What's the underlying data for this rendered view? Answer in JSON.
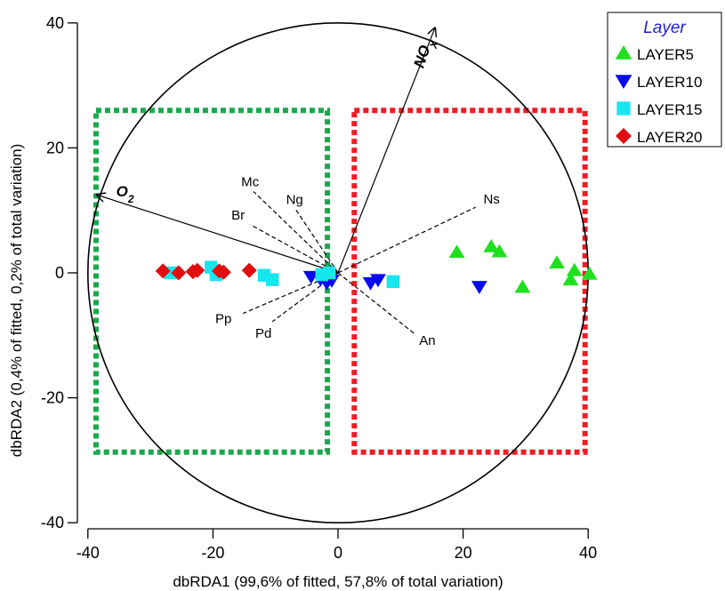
{
  "chart_data": {
    "type": "scatter",
    "xlabel": "dbRDA1 (99,6% of fitted, 57,8% of total variation)",
    "ylabel": "dbRDA2 (0,4% of fitted, 0,2% of total variation)",
    "xlim": [
      -40,
      40
    ],
    "ylim": [
      -40,
      40
    ],
    "xticks": [
      "-40",
      "-20",
      "0",
      "20",
      "40"
    ],
    "yticks": [
      "-40",
      "-20",
      "0",
      "20",
      "40"
    ],
    "correlation_circle_radius": 40,
    "legend": {
      "title": "Layer",
      "placement": "top-right"
    },
    "series": [
      {
        "name": "LAYER5",
        "marker": "triangle-up",
        "color": "#1ee01e",
        "points": [
          [
            19,
            3.3
          ],
          [
            24.5,
            4.2
          ],
          [
            25.8,
            3.4
          ],
          [
            29.5,
            -2.3
          ],
          [
            35,
            1.6
          ],
          [
            37.2,
            -1.1
          ],
          [
            37.8,
            0.4
          ],
          [
            40.2,
            -0.2
          ]
        ]
      },
      {
        "name": "LAYER10",
        "marker": "triangle-down",
        "color": "#0a0af0",
        "points": [
          [
            -4.3,
            -0.6
          ],
          [
            -2.8,
            -1
          ],
          [
            -1.8,
            -1.6
          ],
          [
            -1,
            -1.2
          ],
          [
            5.2,
            -1.6
          ],
          [
            6.4,
            -1.1
          ],
          [
            22.6,
            -2.2
          ]
        ]
      },
      {
        "name": "LAYER15",
        "marker": "square",
        "color": "#18e6ee",
        "points": [
          [
            -26.8,
            0
          ],
          [
            -20.3,
            0.9
          ],
          [
            -19.5,
            -0.3
          ],
          [
            -11.8,
            -0.4
          ],
          [
            -10.5,
            -1.1
          ],
          [
            -2.6,
            -0.3
          ],
          [
            -1.4,
            0
          ],
          [
            8.8,
            -1.4
          ]
        ]
      },
      {
        "name": "LAYER20",
        "marker": "diamond",
        "color": "#e00e0e",
        "points": [
          [
            -28,
            0.3
          ],
          [
            -25.5,
            0
          ],
          [
            -23.2,
            0.2
          ],
          [
            -22.5,
            0.4
          ],
          [
            -19,
            0.3
          ],
          [
            -18.3,
            0.1
          ],
          [
            -14.2,
            0.4
          ]
        ]
      }
    ],
    "vectors": [
      {
        "name": "NOx",
        "x": 15.5,
        "y": 39.2,
        "line": "solid"
      },
      {
        "name": "O2",
        "x": -38.6,
        "y": 12.5,
        "line": "solid"
      },
      {
        "name": "Mc",
        "x": -13.5,
        "y": 13,
        "line": "dashed"
      },
      {
        "name": "Ng",
        "x": -6.8,
        "y": 10.2,
        "line": "dashed"
      },
      {
        "name": "Br",
        "x": -14,
        "y": 7.7,
        "line": "dashed"
      },
      {
        "name": "Ns",
        "x": 22,
        "y": 10.5,
        "line": "dashed"
      },
      {
        "name": "Pp",
        "x": -15.2,
        "y": -6.5,
        "line": "dashed"
      },
      {
        "name": "Pd",
        "x": -10.5,
        "y": -7.8,
        "line": "dashed"
      },
      {
        "name": "An",
        "x": 12.3,
        "y": -9.8,
        "line": "dashed"
      }
    ],
    "group_boxes": [
      {
        "color": "#19a84d",
        "x": [
          -38.7,
          -1.7
        ],
        "y": [
          -28.7,
          26
        ]
      },
      {
        "color": "#ee1c24",
        "x": [
          2.6,
          39.5
        ],
        "y": [
          -28.7,
          26
        ]
      }
    ]
  }
}
